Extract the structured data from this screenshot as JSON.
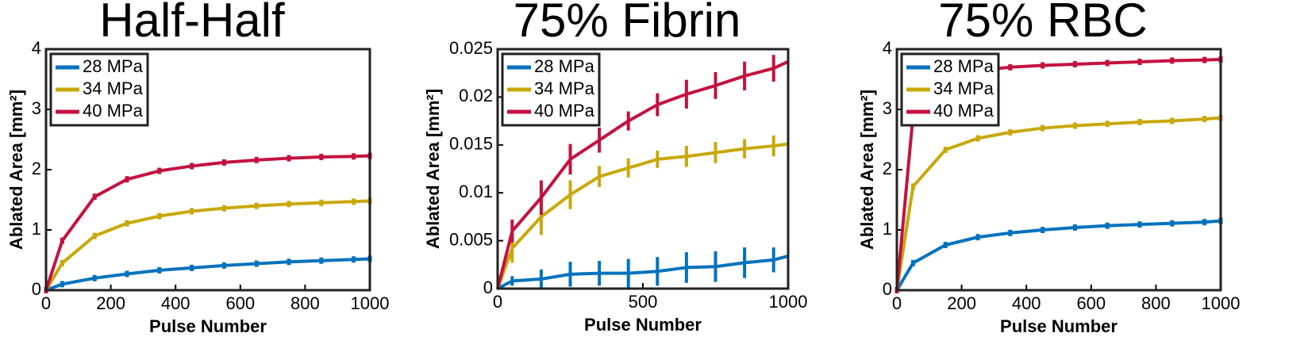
{
  "chart_data": [
    {
      "type": "line",
      "title": "Half-Half",
      "xlabel": "Pulse Number",
      "ylabel": "Ablated Area [mm²]",
      "x": [
        0,
        50,
        150,
        250,
        350,
        450,
        550,
        650,
        750,
        850,
        950,
        1000
      ],
      "xlim": [
        0,
        1000
      ],
      "xticks": [
        0,
        200,
        400,
        600,
        800,
        1000
      ],
      "ylim": [
        0,
        4
      ],
      "yticks": [
        0,
        1,
        2,
        3,
        4
      ],
      "legend": "upper left",
      "series": [
        {
          "name": "28 MPa",
          "color": "#0072bd",
          "values": [
            0,
            0.1,
            0.2,
            0.27,
            0.33,
            0.37,
            0.41,
            0.44,
            0.47,
            0.49,
            0.51,
            0.52
          ]
        },
        {
          "name": "34 MPa",
          "color": "#c8a80a",
          "values": [
            0,
            0.45,
            0.9,
            1.11,
            1.23,
            1.31,
            1.36,
            1.4,
            1.43,
            1.45,
            1.47,
            1.48
          ]
        },
        {
          "name": "40 MPa",
          "color": "#c4123f",
          "values": [
            0,
            0.82,
            1.55,
            1.84,
            1.98,
            2.06,
            2.12,
            2.16,
            2.19,
            2.21,
            2.22,
            2.23
          ]
        }
      ]
    },
    {
      "type": "line",
      "title": "75% Fibrin",
      "xlabel": "Pulse Number",
      "ylabel": "Ablated Area [mm²]",
      "x": [
        0,
        50,
        150,
        250,
        350,
        450,
        550,
        650,
        750,
        850,
        950,
        1000
      ],
      "xlim": [
        0,
        1000
      ],
      "xticks": [
        0,
        500,
        1000
      ],
      "ylim": [
        0,
        0.025
      ],
      "yticks": [
        0,
        0.005,
        0.01,
        0.015,
        0.02,
        0.025
      ],
      "legend": "upper left",
      "series": [
        {
          "name": "28 MPa",
          "color": "#0072bd",
          "values": [
            0,
            0.0008,
            0.001,
            0.0015,
            0.0016,
            0.0016,
            0.0018,
            0.0022,
            0.0023,
            0.0027,
            0.003,
            0.0034
          ],
          "errors": [
            null,
            0.0005,
            0.001,
            0.0013,
            0.0013,
            0.0015,
            0.0015,
            0.0016,
            0.0016,
            0.0016,
            0.0013,
            null
          ]
        },
        {
          "name": "34 MPa",
          "color": "#c8a80a",
          "values": [
            0,
            0.0042,
            0.0075,
            0.0098,
            0.0117,
            0.0126,
            0.0135,
            0.0138,
            0.0142,
            0.0146,
            0.0149,
            0.0151
          ],
          "errors": [
            null,
            0.0015,
            0.0019,
            0.0015,
            0.0011,
            0.001,
            0.0009,
            0.0011,
            0.0011,
            0.001,
            0.0011,
            null
          ]
        },
        {
          "name": "40 MPa",
          "color": "#c4123f",
          "values": [
            0,
            0.006,
            0.0095,
            0.0135,
            0.0155,
            0.0175,
            0.0192,
            0.0203,
            0.0212,
            0.0222,
            0.023,
            0.0237
          ],
          "errors": [
            null,
            0.0012,
            0.0018,
            0.0016,
            0.0013,
            0.001,
            0.0012,
            0.0015,
            0.0014,
            0.0015,
            0.0014,
            null
          ]
        }
      ]
    },
    {
      "type": "line",
      "title": "75% RBC",
      "xlabel": "Pulse Number",
      "ylabel": "Ablated Area [mm²]",
      "x": [
        0,
        50,
        150,
        250,
        350,
        450,
        550,
        650,
        750,
        850,
        950,
        1000
      ],
      "xlim": [
        0,
        1000
      ],
      "xticks": [
        0,
        200,
        400,
        600,
        800,
        1000
      ],
      "ylim": [
        0,
        4
      ],
      "yticks": [
        0,
        1,
        2,
        3,
        4
      ],
      "legend": "upper left",
      "series": [
        {
          "name": "28 MPa",
          "color": "#0072bd",
          "values": [
            0,
            0.45,
            0.75,
            0.88,
            0.95,
            1.0,
            1.04,
            1.07,
            1.09,
            1.11,
            1.13,
            1.15
          ]
        },
        {
          "name": "34 MPa",
          "color": "#c8a80a",
          "values": [
            0,
            1.72,
            2.33,
            2.52,
            2.62,
            2.69,
            2.73,
            2.76,
            2.79,
            2.81,
            2.84,
            2.86
          ]
        },
        {
          "name": "40 MPa",
          "color": "#c4123f",
          "values": [
            0,
            2.9,
            3.55,
            3.65,
            3.7,
            3.73,
            3.75,
            3.77,
            3.79,
            3.81,
            3.82,
            3.83
          ]
        }
      ]
    }
  ]
}
